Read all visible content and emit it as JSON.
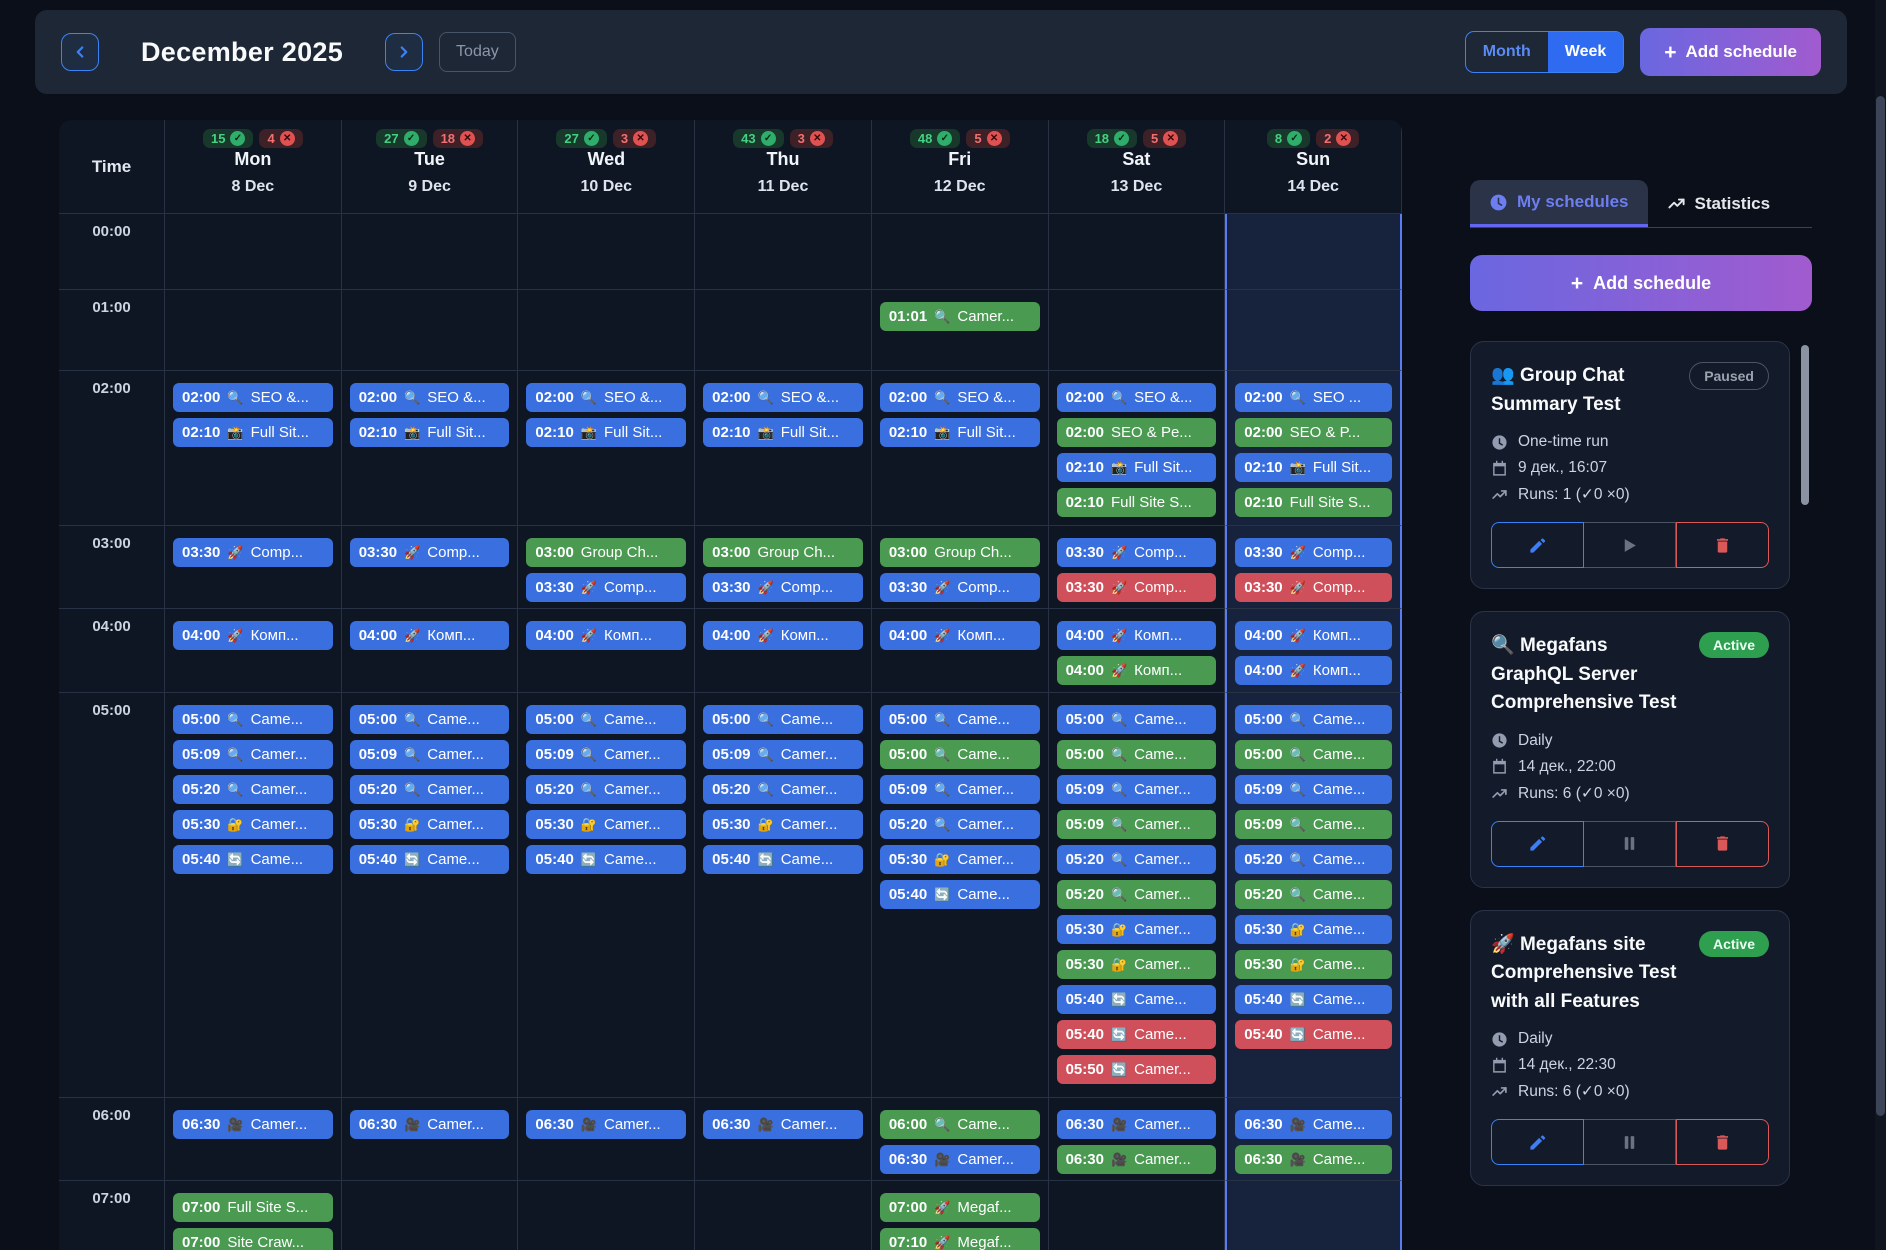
{
  "header": {
    "title": "December 2025",
    "today_label": "Today",
    "month_label": "Month",
    "week_label": "Week",
    "active_view": "Week",
    "add_schedule_label": "Add schedule"
  },
  "colors": {
    "event_blue": "#3a6fe0",
    "event_green": "#4a9a52",
    "event_red": "#cf4f5a",
    "accent_gradient_start": "#6a67e0",
    "accent_gradient_end": "#a15bcf",
    "today_highlight_border": "#5b7cf0",
    "passed_badge": "#2fae6b",
    "failed_badge": "#e05252"
  },
  "calendar": {
    "time_label": "Time",
    "hours": [
      "00:00",
      "01:00",
      "02:00",
      "03:00",
      "04:00",
      "05:00",
      "06:00",
      "07:00"
    ],
    "days": [
      {
        "name": "Mon",
        "date": "8 Dec",
        "passed": 15,
        "failed": 4,
        "events": [
          {
            "row": 2,
            "time": "02:00",
            "icon": "🔍",
            "title": "SEO &...",
            "color": "blue"
          },
          {
            "row": 2,
            "time": "02:10",
            "icon": "📸",
            "title": "Full Sit...",
            "color": "blue"
          },
          {
            "row": 3,
            "time": "03:30",
            "icon": "🚀",
            "title": "Comp...",
            "color": "blue"
          },
          {
            "row": 4,
            "time": "04:00",
            "icon": "🚀",
            "title": "Комп...",
            "color": "blue"
          },
          {
            "row": 5,
            "time": "05:00",
            "icon": "🔍",
            "title": "Came...",
            "color": "blue"
          },
          {
            "row": 5,
            "time": "05:09",
            "icon": "🔍",
            "title": "Camer...",
            "color": "blue"
          },
          {
            "row": 5,
            "time": "05:20",
            "icon": "🔍",
            "title": "Camer...",
            "color": "blue"
          },
          {
            "row": 5,
            "time": "05:30",
            "icon": "🔐",
            "title": "Camer...",
            "color": "blue"
          },
          {
            "row": 5,
            "time": "05:40",
            "icon": "🔄",
            "title": "Came...",
            "color": "blue"
          },
          {
            "row": 6,
            "time": "06:30",
            "icon": "🎥",
            "title": "Camer...",
            "color": "blue"
          },
          {
            "row": 7,
            "time": "07:00",
            "icon": "",
            "title": "Full Site S...",
            "color": "green"
          },
          {
            "row": 7,
            "time": "07:00",
            "icon": "",
            "title": "Site Craw...",
            "color": "green"
          }
        ]
      },
      {
        "name": "Tue",
        "date": "9 Dec",
        "passed": 27,
        "failed": 18,
        "events": [
          {
            "row": 2,
            "time": "02:00",
            "icon": "🔍",
            "title": "SEO &...",
            "color": "blue"
          },
          {
            "row": 2,
            "time": "02:10",
            "icon": "📸",
            "title": "Full Sit...",
            "color": "blue"
          },
          {
            "row": 3,
            "time": "03:30",
            "icon": "🚀",
            "title": "Comp...",
            "color": "blue"
          },
          {
            "row": 4,
            "time": "04:00",
            "icon": "🚀",
            "title": "Комп...",
            "color": "blue"
          },
          {
            "row": 5,
            "time": "05:00",
            "icon": "🔍",
            "title": "Came...",
            "color": "blue"
          },
          {
            "row": 5,
            "time": "05:09",
            "icon": "🔍",
            "title": "Camer...",
            "color": "blue"
          },
          {
            "row": 5,
            "time": "05:20",
            "icon": "🔍",
            "title": "Camer...",
            "color": "blue"
          },
          {
            "row": 5,
            "time": "05:30",
            "icon": "🔐",
            "title": "Camer...",
            "color": "blue"
          },
          {
            "row": 5,
            "time": "05:40",
            "icon": "🔄",
            "title": "Came...",
            "color": "blue"
          },
          {
            "row": 6,
            "time": "06:30",
            "icon": "🎥",
            "title": "Camer...",
            "color": "blue"
          }
        ]
      },
      {
        "name": "Wed",
        "date": "10 Dec",
        "passed": 27,
        "failed": 3,
        "events": [
          {
            "row": 2,
            "time": "02:00",
            "icon": "🔍",
            "title": "SEO &...",
            "color": "blue"
          },
          {
            "row": 2,
            "time": "02:10",
            "icon": "📸",
            "title": "Full Sit...",
            "color": "blue"
          },
          {
            "row": 3,
            "time": "03:00",
            "icon": "",
            "title": "Group Ch...",
            "color": "green"
          },
          {
            "row": 3,
            "time": "03:30",
            "icon": "🚀",
            "title": "Comp...",
            "color": "blue"
          },
          {
            "row": 4,
            "time": "04:00",
            "icon": "🚀",
            "title": "Комп...",
            "color": "blue"
          },
          {
            "row": 5,
            "time": "05:00",
            "icon": "🔍",
            "title": "Came...",
            "color": "blue"
          },
          {
            "row": 5,
            "time": "05:09",
            "icon": "🔍",
            "title": "Camer...",
            "color": "blue"
          },
          {
            "row": 5,
            "time": "05:20",
            "icon": "🔍",
            "title": "Camer...",
            "color": "blue"
          },
          {
            "row": 5,
            "time": "05:30",
            "icon": "🔐",
            "title": "Camer...",
            "color": "blue"
          },
          {
            "row": 5,
            "time": "05:40",
            "icon": "🔄",
            "title": "Came...",
            "color": "blue"
          },
          {
            "row": 6,
            "time": "06:30",
            "icon": "🎥",
            "title": "Camer...",
            "color": "blue"
          }
        ]
      },
      {
        "name": "Thu",
        "date": "11 Dec",
        "passed": 43,
        "failed": 3,
        "events": [
          {
            "row": 2,
            "time": "02:00",
            "icon": "🔍",
            "title": "SEO &...",
            "color": "blue"
          },
          {
            "row": 2,
            "time": "02:10",
            "icon": "📸",
            "title": "Full Sit...",
            "color": "blue"
          },
          {
            "row": 3,
            "time": "03:00",
            "icon": "",
            "title": "Group Ch...",
            "color": "green"
          },
          {
            "row": 3,
            "time": "03:30",
            "icon": "🚀",
            "title": "Comp...",
            "color": "blue"
          },
          {
            "row": 4,
            "time": "04:00",
            "icon": "🚀",
            "title": "Комп...",
            "color": "blue"
          },
          {
            "row": 5,
            "time": "05:00",
            "icon": "🔍",
            "title": "Came...",
            "color": "blue"
          },
          {
            "row": 5,
            "time": "05:09",
            "icon": "🔍",
            "title": "Camer...",
            "color": "blue"
          },
          {
            "row": 5,
            "time": "05:20",
            "icon": "🔍",
            "title": "Camer...",
            "color": "blue"
          },
          {
            "row": 5,
            "time": "05:30",
            "icon": "🔐",
            "title": "Camer...",
            "color": "blue"
          },
          {
            "row": 5,
            "time": "05:40",
            "icon": "🔄",
            "title": "Came...",
            "color": "blue"
          },
          {
            "row": 6,
            "time": "06:30",
            "icon": "🎥",
            "title": "Camer...",
            "color": "blue"
          }
        ]
      },
      {
        "name": "Fri",
        "date": "12 Dec",
        "passed": 48,
        "failed": 5,
        "events": [
          {
            "row": 1,
            "time": "01:01",
            "icon": "🔍",
            "title": "Camer...",
            "color": "green"
          },
          {
            "row": 2,
            "time": "02:00",
            "icon": "🔍",
            "title": "SEO &...",
            "color": "blue"
          },
          {
            "row": 2,
            "time": "02:10",
            "icon": "📸",
            "title": "Full Sit...",
            "color": "blue"
          },
          {
            "row": 3,
            "time": "03:00",
            "icon": "",
            "title": "Group Ch...",
            "color": "green"
          },
          {
            "row": 3,
            "time": "03:30",
            "icon": "🚀",
            "title": "Comp...",
            "color": "blue"
          },
          {
            "row": 4,
            "time": "04:00",
            "icon": "🚀",
            "title": "Комп...",
            "color": "blue"
          },
          {
            "row": 5,
            "time": "05:00",
            "icon": "🔍",
            "title": "Came...",
            "color": "blue"
          },
          {
            "row": 5,
            "time": "05:00",
            "icon": "🔍",
            "title": "Came...",
            "color": "green"
          },
          {
            "row": 5,
            "time": "05:09",
            "icon": "🔍",
            "title": "Camer...",
            "color": "blue"
          },
          {
            "row": 5,
            "time": "05:20",
            "icon": "🔍",
            "title": "Camer...",
            "color": "blue"
          },
          {
            "row": 5,
            "time": "05:30",
            "icon": "🔐",
            "title": "Camer...",
            "color": "blue"
          },
          {
            "row": 5,
            "time": "05:40",
            "icon": "🔄",
            "title": "Came...",
            "color": "blue"
          },
          {
            "row": 6,
            "time": "06:00",
            "icon": "🔍",
            "title": "Came...",
            "color": "green"
          },
          {
            "row": 6,
            "time": "06:30",
            "icon": "🎥",
            "title": "Camer...",
            "color": "blue"
          },
          {
            "row": 7,
            "time": "07:00",
            "icon": "🚀",
            "title": "Megaf...",
            "color": "green"
          },
          {
            "row": 7,
            "time": "07:10",
            "icon": "🚀",
            "title": "Megaf...",
            "color": "green"
          }
        ]
      },
      {
        "name": "Sat",
        "date": "13 Dec",
        "passed": 18,
        "failed": 5,
        "events": [
          {
            "row": 2,
            "time": "02:00",
            "icon": "🔍",
            "title": "SEO &...",
            "color": "blue"
          },
          {
            "row": 2,
            "time": "02:00",
            "icon": "",
            "title": "SEO & Pe...",
            "color": "green"
          },
          {
            "row": 2,
            "time": "02:10",
            "icon": "📸",
            "title": "Full Sit...",
            "color": "blue"
          },
          {
            "row": 2,
            "time": "02:10",
            "icon": "",
            "title": "Full Site S...",
            "color": "green"
          },
          {
            "row": 3,
            "time": "03:30",
            "icon": "🚀",
            "title": "Comp...",
            "color": "blue"
          },
          {
            "row": 3,
            "time": "03:30",
            "icon": "🚀",
            "title": "Comp...",
            "color": "red"
          },
          {
            "row": 4,
            "time": "04:00",
            "icon": "🚀",
            "title": "Комп...",
            "color": "blue"
          },
          {
            "row": 4,
            "time": "04:00",
            "icon": "🚀",
            "title": "Комп...",
            "color": "green"
          },
          {
            "row": 5,
            "time": "05:00",
            "icon": "🔍",
            "title": "Came...",
            "color": "blue"
          },
          {
            "row": 5,
            "time": "05:00",
            "icon": "🔍",
            "title": "Came...",
            "color": "green"
          },
          {
            "row": 5,
            "time": "05:09",
            "icon": "🔍",
            "title": "Camer...",
            "color": "blue"
          },
          {
            "row": 5,
            "time": "05:09",
            "icon": "🔍",
            "title": "Camer...",
            "color": "green"
          },
          {
            "row": 5,
            "time": "05:20",
            "icon": "🔍",
            "title": "Camer...",
            "color": "blue"
          },
          {
            "row": 5,
            "time": "05:20",
            "icon": "🔍",
            "title": "Camer...",
            "color": "green"
          },
          {
            "row": 5,
            "time": "05:30",
            "icon": "🔐",
            "title": "Camer...",
            "color": "blue"
          },
          {
            "row": 5,
            "time": "05:30",
            "icon": "🔐",
            "title": "Camer...",
            "color": "green"
          },
          {
            "row": 5,
            "time": "05:40",
            "icon": "🔄",
            "title": "Came...",
            "color": "blue"
          },
          {
            "row": 5,
            "time": "05:40",
            "icon": "🔄",
            "title": "Came...",
            "color": "red"
          },
          {
            "row": 5,
            "time": "05:50",
            "icon": "🔄",
            "title": "Camer...",
            "color": "red"
          },
          {
            "row": 6,
            "time": "06:30",
            "icon": "🎥",
            "title": "Camer...",
            "color": "blue"
          },
          {
            "row": 6,
            "time": "06:30",
            "icon": "🎥",
            "title": "Camer...",
            "color": "green"
          }
        ]
      },
      {
        "name": "Sun",
        "date": "14 Dec",
        "passed": 8,
        "failed": 2,
        "events": [
          {
            "row": 2,
            "time": "02:00",
            "icon": "🔍",
            "title": "SEO ...",
            "color": "blue"
          },
          {
            "row": 2,
            "time": "02:00",
            "icon": "",
            "title": "SEO & P...",
            "color": "green"
          },
          {
            "row": 2,
            "time": "02:10",
            "icon": "📸",
            "title": "Full Sit...",
            "color": "blue"
          },
          {
            "row": 2,
            "time": "02:10",
            "icon": "",
            "title": "Full Site S...",
            "color": "green"
          },
          {
            "row": 3,
            "time": "03:30",
            "icon": "🚀",
            "title": "Comp...",
            "color": "blue"
          },
          {
            "row": 3,
            "time": "03:30",
            "icon": "🚀",
            "title": "Comp...",
            "color": "red"
          },
          {
            "row": 4,
            "time": "04:00",
            "icon": "🚀",
            "title": "Комп...",
            "color": "blue"
          },
          {
            "row": 4,
            "time": "04:00",
            "icon": "🚀",
            "title": "Комп...",
            "color": "blue"
          },
          {
            "row": 5,
            "time": "05:00",
            "icon": "🔍",
            "title": "Came...",
            "color": "blue"
          },
          {
            "row": 5,
            "time": "05:00",
            "icon": "🔍",
            "title": "Came...",
            "color": "green"
          },
          {
            "row": 5,
            "time": "05:09",
            "icon": "🔍",
            "title": "Came...",
            "color": "blue"
          },
          {
            "row": 5,
            "time": "05:09",
            "icon": "🔍",
            "title": "Came...",
            "color": "green"
          },
          {
            "row": 5,
            "time": "05:20",
            "icon": "🔍",
            "title": "Came...",
            "color": "blue"
          },
          {
            "row": 5,
            "time": "05:20",
            "icon": "🔍",
            "title": "Came...",
            "color": "green"
          },
          {
            "row": 5,
            "time": "05:30",
            "icon": "🔐",
            "title": "Came...",
            "color": "blue"
          },
          {
            "row": 5,
            "time": "05:30",
            "icon": "🔐",
            "title": "Came...",
            "color": "green"
          },
          {
            "row": 5,
            "time": "05:40",
            "icon": "🔄",
            "title": "Came...",
            "color": "blue"
          },
          {
            "row": 5,
            "time": "05:40",
            "icon": "🔄",
            "title": "Came...",
            "color": "red"
          },
          {
            "row": 6,
            "time": "06:30",
            "icon": "🎥",
            "title": "Came...",
            "color": "blue"
          },
          {
            "row": 6,
            "time": "06:30",
            "icon": "🎥",
            "title": "Came...",
            "color": "green"
          }
        ]
      }
    ]
  },
  "sidebar": {
    "tabs": [
      {
        "label": "My schedules",
        "active": true
      },
      {
        "label": "Statistics",
        "active": false
      }
    ],
    "add_schedule_label": "Add schedule",
    "cards": [
      {
        "icon": "👥",
        "title": "Group Chat Summary Test",
        "status": "Paused",
        "status_type": "paused",
        "schedule_type": "One-time run",
        "datetime": "9 дек., 16:07",
        "runs": "Runs: 1 (✓0  ×0)",
        "actions": [
          "edit",
          "play",
          "delete"
        ]
      },
      {
        "icon": "🔍",
        "title": "Megafans GraphQL Server Comprehensive Test",
        "status": "Active",
        "status_type": "active",
        "schedule_type": "Daily",
        "datetime": "14 дек., 22:00",
        "runs": "Runs: 6 (✓0  ×0)",
        "actions": [
          "edit",
          "pause",
          "delete"
        ]
      },
      {
        "icon": "🚀",
        "title": "Megafans site Comprehensive Test with all Features",
        "status": "Active",
        "status_type": "active",
        "schedule_type": "Daily",
        "datetime": "14 дек., 22:30",
        "runs": "Runs: 6 (✓0  ×0)",
        "actions": [
          "edit",
          "pause",
          "delete"
        ]
      }
    ]
  }
}
